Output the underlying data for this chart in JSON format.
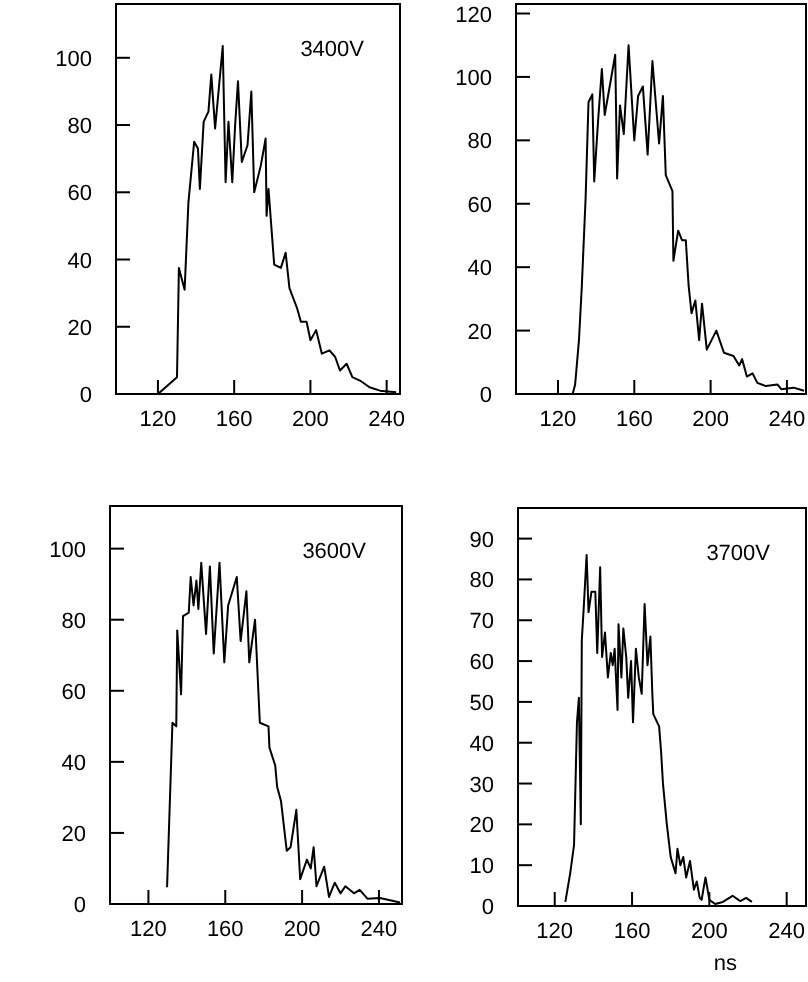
{
  "chart_data": [
    {
      "type": "line",
      "title": "3400V",
      "xlim": [
        98,
        247
      ],
      "xticks": [
        120,
        160,
        200,
        240
      ],
      "ylim": [
        0,
        116
      ],
      "yticks": [
        0,
        20,
        40,
        60,
        80,
        100
      ],
      "grid": false,
      "series": [
        {
          "color": "#000000",
          "x": [
            120,
            130,
            131,
            134,
            136,
            139,
            141,
            142,
            144,
            146.5,
            148,
            150,
            154,
            155.5,
            157,
            159,
            160.5,
            162,
            164,
            167,
            169,
            170.5,
            174,
            176.5,
            177,
            178,
            181,
            184.5,
            187,
            189,
            193,
            195,
            198,
            200,
            203,
            206,
            210,
            213,
            215.5,
            219,
            222,
            226,
            231,
            236.5,
            245
          ],
          "values": [
            0,
            5,
            37.5,
            31,
            57,
            75,
            73,
            61,
            81,
            84,
            95,
            79,
            103.5,
            63,
            81,
            63,
            80,
            93,
            69,
            74,
            90,
            60,
            68,
            76,
            53,
            61,
            38.5,
            37.5,
            42,
            31.5,
            25.5,
            21.5,
            21.5,
            16,
            19,
            12,
            13,
            11,
            7,
            9,
            5,
            4,
            2,
            1,
            0.5
          ]
        }
      ]
    },
    {
      "type": "line",
      "xlim": [
        98,
        250
      ],
      "xticks": [
        120,
        160,
        200,
        240
      ],
      "ylim": [
        0,
        123
      ],
      "yticks": [
        0,
        20,
        40,
        60,
        80,
        100,
        120
      ],
      "grid": false,
      "series": [
        {
          "color": "#000000",
          "x": [
            127.7,
            129,
            131,
            132.5,
            134.5,
            136,
            138,
            139,
            141,
            143,
            144.5,
            150,
            151,
            152.5,
            154.5,
            157,
            160,
            162,
            164.5,
            167,
            169.5,
            173,
            175,
            176.5,
            180,
            180.5,
            183,
            185,
            187,
            188.5,
            190,
            192,
            194,
            195.5,
            198,
            203,
            207,
            212,
            215,
            216.5,
            219,
            222,
            224.5,
            229,
            235,
            237,
            243.5,
            249
          ],
          "values": [
            0,
            3,
            17,
            34,
            62,
            92,
            94.5,
            67,
            86,
            102.5,
            88,
            107,
            68,
            91,
            82,
            110,
            80,
            94,
            97,
            75.5,
            105,
            79,
            94,
            69,
            64,
            42,
            51.5,
            48.5,
            48.5,
            34,
            25.5,
            29.5,
            17,
            28.5,
            14,
            20,
            13,
            12,
            9,
            11,
            5.5,
            6.5,
            3.5,
            2.5,
            3,
            1.5,
            2,
            1
          ]
        }
      ]
    },
    {
      "type": "line",
      "title": "3600V",
      "xlim": [
        100,
        252
      ],
      "xticks": [
        120,
        160,
        200,
        240
      ],
      "ylim": [
        0,
        112
      ],
      "yticks": [
        0,
        20,
        40,
        60,
        80,
        100
      ],
      "grid": false,
      "series": [
        {
          "color": "#000000",
          "x": [
            129.7,
            132.5,
            134.5,
            135,
            137,
            138,
            141,
            142,
            143.5,
            145,
            146,
            147.5,
            150,
            152,
            154,
            157,
            159.5,
            161.5,
            166,
            168,
            171,
            172.5,
            175.5,
            178,
            182.5,
            183,
            186,
            187,
            189,
            192,
            194,
            197,
            199,
            202.5,
            204.5,
            206,
            207.5,
            211.5,
            214,
            217,
            220,
            222.5,
            227,
            230,
            234,
            240.5,
            251
          ],
          "values": [
            4.7,
            51,
            50,
            77,
            59,
            81,
            82,
            92,
            84,
            91,
            83,
            96,
            76,
            95,
            70.5,
            96,
            68,
            84,
            92,
            74,
            88,
            68,
            80,
            51,
            50,
            44,
            39,
            33,
            29,
            15,
            16,
            26.5,
            7,
            12.5,
            10,
            16,
            5,
            10.5,
            2,
            6,
            3,
            5,
            3,
            4,
            1.5,
            1.7,
            0.4
          ]
        }
      ]
    },
    {
      "type": "line",
      "title": "3700V",
      "xlabel": "ns",
      "xlim": [
        101,
        250
      ],
      "xticks": [
        120,
        160,
        200,
        240
      ],
      "ylim": [
        0,
        97.5
      ],
      "yticks": [
        0,
        10,
        20,
        30,
        40,
        50,
        60,
        70,
        80,
        90
      ],
      "grid": false,
      "series": [
        {
          "color": "#000000",
          "x": [
            125.5,
            128,
            130,
            131.5,
            132.5,
            133.5,
            134,
            135,
            136.5,
            137.5,
            139,
            141,
            142,
            143.5,
            144.5,
            146,
            147.5,
            149,
            150,
            151,
            152.5,
            153,
            154.5,
            155.5,
            157,
            158,
            159.5,
            160.5,
            162,
            163.5,
            165,
            166.5,
            168,
            169.5,
            170.5,
            171,
            174,
            175,
            176,
            178,
            180,
            182.5,
            183.5,
            185,
            186.5,
            188,
            190,
            192,
            193.5,
            195,
            196,
            198,
            200,
            203,
            207,
            212,
            216,
            219,
            222
          ],
          "values": [
            1,
            8,
            15,
            45,
            51,
            20,
            65,
            73,
            86,
            72,
            77,
            77,
            62,
            83,
            61,
            67,
            56,
            62,
            59,
            63,
            48,
            69,
            56,
            68,
            61,
            51,
            60,
            45,
            63,
            56,
            52,
            74,
            59,
            66,
            52,
            47,
            44,
            38,
            30,
            20,
            12,
            8,
            14,
            10,
            12,
            7,
            11,
            4,
            6,
            2,
            1.5,
            7,
            1.5,
            0.5,
            1,
            2.5,
            1.2,
            2,
            1
          ]
        }
      ]
    }
  ]
}
